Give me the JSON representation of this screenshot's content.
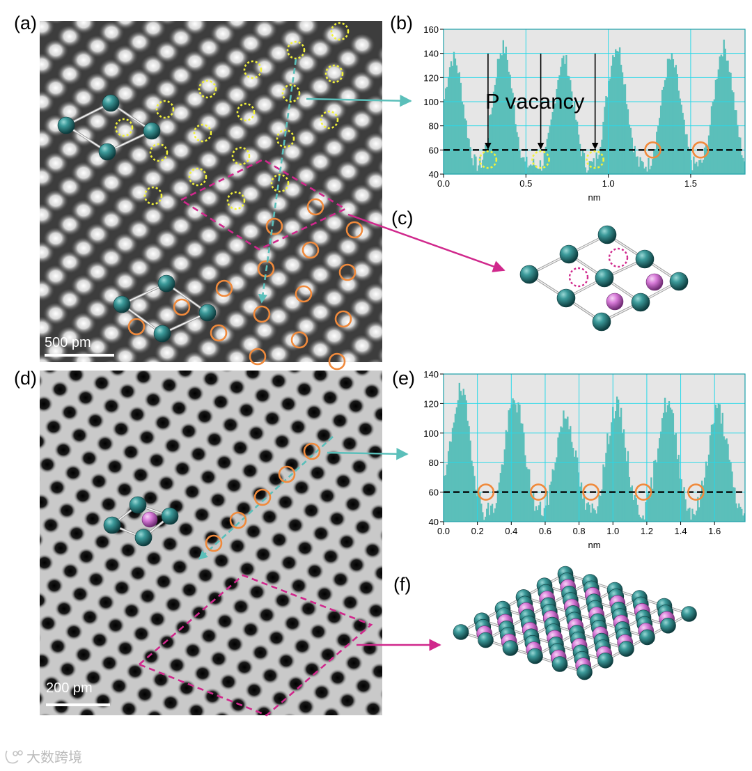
{
  "figure": {
    "panel_labels": {
      "a": "(a)",
      "b": "(b)",
      "c": "(c)",
      "d": "(d)",
      "e": "(e)",
      "f": "(f)"
    },
    "scalebar_a": "500 pm",
    "scalebar_d": "200 pm",
    "annotation_b": "P vacancy",
    "watermark": "大数跨境"
  },
  "colors": {
    "teal": "#5bbfba",
    "orange": "#f08a3c",
    "yellow": "#f2f23a",
    "magenta": "#d0288c",
    "atom_teal": "#2f8585",
    "atom_pink": "#d77ad8",
    "grid": "#29d8e8"
  },
  "chart_data": [
    {
      "panel": "b",
      "type": "area",
      "xlabel": "nm",
      "ylabel": "",
      "xlim": [
        0,
        1.83
      ],
      "ylim": [
        40,
        160
      ],
      "xticks": [
        0.0,
        0.5,
        1.0,
        1.5
      ],
      "xtick_labels": [
        "0.0",
        "0.5",
        "1.0",
        "1.5"
      ],
      "yticks": [
        40,
        60,
        80,
        100,
        120,
        140,
        160
      ],
      "ytick_labels": [
        "40",
        "60",
        "80",
        "100",
        "120",
        "140",
        "160"
      ],
      "grid": true,
      "threshold_line": 60,
      "peaks": {
        "x": [
          0.06,
          0.36,
          0.73,
          1.05,
          1.38,
          1.7
        ],
        "y": [
          136,
          145,
          135,
          146,
          135,
          145
        ]
      },
      "vacancy_markers": {
        "x": [
          0.27,
          0.59,
          0.92
        ],
        "y": [
          52,
          52,
          52
        ]
      },
      "orange_markers": {
        "x": [
          1.27,
          1.56
        ],
        "y": [
          60,
          60
        ]
      }
    },
    {
      "panel": "e",
      "type": "area",
      "xlabel": "nm",
      "ylabel": "",
      "xlim": [
        0,
        1.78
      ],
      "ylim": [
        40,
        140
      ],
      "xticks": [
        0.0,
        0.2,
        0.4,
        0.6,
        0.8,
        1.0,
        1.2,
        1.4,
        1.6
      ],
      "xtick_labels": [
        "0.0",
        "0.2",
        "0.4",
        "0.6",
        "0.8",
        "1.0",
        "1.2",
        "1.4",
        "1.6"
      ],
      "yticks": [
        40,
        60,
        80,
        100,
        120,
        140
      ],
      "ytick_labels": [
        "40",
        "60",
        "80",
        "100",
        "120",
        "140"
      ],
      "grid": true,
      "threshold_line": 60,
      "peaks": {
        "x": [
          0.1,
          0.42,
          0.72,
          1.02,
          1.32,
          1.62
        ],
        "y": [
          128,
          122,
          112,
          118,
          120,
          116
        ]
      },
      "orange_markers": {
        "x": [
          0.25,
          0.56,
          0.87,
          1.18,
          1.49
        ],
        "y": [
          60,
          60,
          60,
          60,
          60
        ]
      }
    }
  ]
}
